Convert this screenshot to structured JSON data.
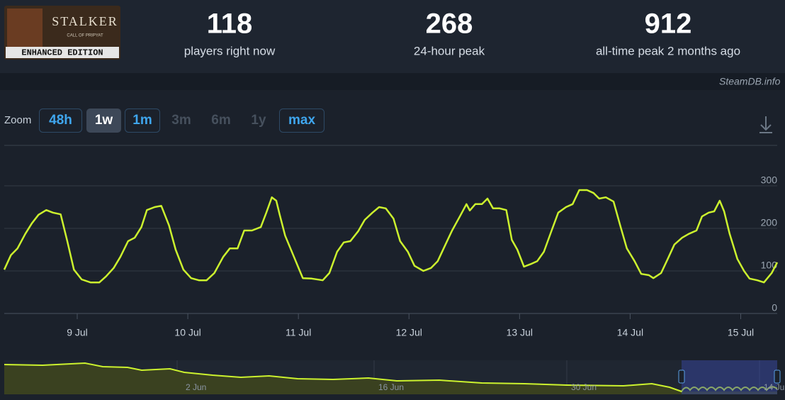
{
  "header": {
    "logo": {
      "title": "STALKER",
      "subtitle": "CALL OF PRIPYAT",
      "edition": "ENHANCED EDITION"
    },
    "stats": [
      {
        "value": 118,
        "label": "players right now"
      },
      {
        "value": 268,
        "label": "24-hour peak"
      },
      {
        "value": 912,
        "label": "all-time peak 2 months ago"
      }
    ],
    "watermark": "SteamDB.info"
  },
  "zoom": {
    "label": "Zoom",
    "buttons": [
      {
        "label": "48h",
        "state": "enabled"
      },
      {
        "label": "1w",
        "state": "active"
      },
      {
        "label": "1m",
        "state": "enabled"
      },
      {
        "label": "3m",
        "state": "disabled"
      },
      {
        "label": "6m",
        "state": "disabled"
      },
      {
        "label": "1y",
        "state": "disabled"
      },
      {
        "label": "max",
        "state": "enabled"
      }
    ]
  },
  "chart_data": {
    "type": "line",
    "color": "#ccf22e",
    "x": [
      8.34,
      8.4,
      8.46,
      8.53,
      8.59,
      8.65,
      8.72,
      8.78,
      8.85,
      8.91,
      8.97,
      9.04,
      9.12,
      9.2,
      9.26,
      9.33,
      9.39,
      9.46,
      9.52,
      9.58,
      9.63,
      9.7,
      9.76,
      9.83,
      9.89,
      9.96,
      10.03,
      10.1,
      10.17,
      10.24,
      10.32,
      10.38,
      10.45,
      10.51,
      10.58,
      10.66,
      10.71,
      10.76,
      10.8,
      10.83,
      10.88,
      10.96,
      11.04,
      11.12,
      11.22,
      11.28,
      11.35,
      11.41,
      11.47,
      11.54,
      11.6,
      11.67,
      11.73,
      11.79,
      11.86,
      11.92,
      11.99,
      12.05,
      12.13,
      12.2,
      12.26,
      12.33,
      12.39,
      12.46,
      12.52,
      12.55,
      12.6,
      12.66,
      12.71,
      12.76,
      12.82,
      12.88,
      12.93,
      12.98,
      13.04,
      13.11,
      13.16,
      13.22,
      13.29,
      13.35,
      13.42,
      13.48,
      13.54,
      13.61,
      13.67,
      13.72,
      13.78,
      13.85,
      13.91,
      13.97,
      14.04,
      14.1,
      14.17,
      14.21,
      14.28,
      14.34,
      14.4,
      14.47,
      14.53,
      14.6,
      14.65,
      14.71,
      14.76,
      14.81,
      14.85,
      14.9,
      14.97,
      15.03,
      15.08,
      15.15,
      15.21,
      15.28,
      15.33
    ],
    "values": [
      103,
      137,
      153,
      187,
      212,
      232,
      243,
      237,
      233,
      170,
      103,
      80,
      73,
      73,
      87,
      107,
      133,
      170,
      178,
      203,
      243,
      250,
      253,
      207,
      150,
      103,
      83,
      78,
      78,
      95,
      133,
      153,
      153,
      195,
      195,
      203,
      237,
      273,
      265,
      233,
      183,
      133,
      83,
      82,
      78,
      95,
      145,
      167,
      170,
      193,
      220,
      237,
      250,
      247,
      223,
      170,
      145,
      112,
      100,
      107,
      123,
      162,
      195,
      228,
      257,
      242,
      257,
      257,
      270,
      247,
      247,
      243,
      173,
      150,
      110,
      117,
      123,
      145,
      195,
      237,
      250,
      257,
      290,
      290,
      283,
      270,
      273,
      263,
      207,
      153,
      123,
      93,
      90,
      83,
      95,
      128,
      162,
      178,
      187,
      195,
      228,
      237,
      240,
      265,
      240,
      187,
      128,
      100,
      82,
      78,
      73,
      95,
      120
    ],
    "xlim": [
      8.34,
      15.33
    ],
    "ylim": [
      0,
      395
    ],
    "xticks": [
      {
        "value": 9,
        "label": "9 Jul"
      },
      {
        "value": 10,
        "label": "10 Jul"
      },
      {
        "value": 11,
        "label": "11 Jul"
      },
      {
        "value": 12,
        "label": "12 Jul"
      },
      {
        "value": 13,
        "label": "13 Jul"
      },
      {
        "value": 14,
        "label": "14 Jul"
      },
      {
        "value": 15,
        "label": "15 Jul"
      }
    ],
    "yticks": [
      0,
      100,
      200,
      300
    ],
    "grid": true
  },
  "navigator": {
    "labels": [
      "2 Jun",
      "16 Jun",
      "30 Jun",
      "14 Jul"
    ]
  }
}
